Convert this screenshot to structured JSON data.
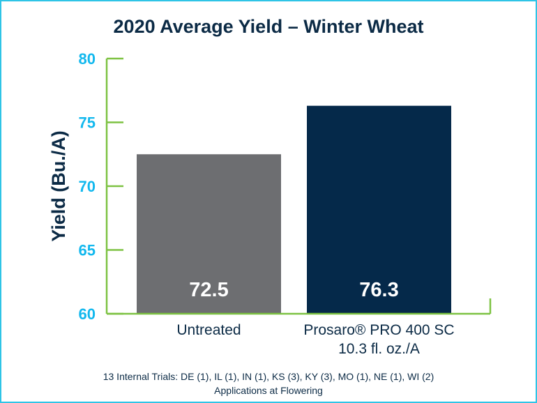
{
  "chart_data": {
    "type": "bar",
    "title": "2020 Average Yield – Winter Wheat",
    "ylabel": "Yield (Bu./A)",
    "xlabel": "",
    "ylim": [
      60,
      80
    ],
    "yticks": [
      "60",
      "65",
      "70",
      "75",
      "80"
    ],
    "categories": [
      {
        "lines": [
          "Untreated"
        ]
      },
      {
        "lines": [
          "Prosaro® PRO 400 SC",
          "10.3 fl. oz./A"
        ]
      }
    ],
    "values": [
      72.5,
      76.3
    ],
    "data_labels": [
      "72.5",
      "76.3"
    ],
    "colors": [
      "#6d6e71",
      "#05294a"
    ],
    "axis_color": "#7dc242",
    "tick_label_color": "#12b8ee",
    "grid": false,
    "footnotes": [
      "13 Internal Trials: DE (1), IL (1), IN (1), KS (3), KY (3), MO (1), NE (1), WI (2)",
      "Applications at Flowering"
    ]
  }
}
